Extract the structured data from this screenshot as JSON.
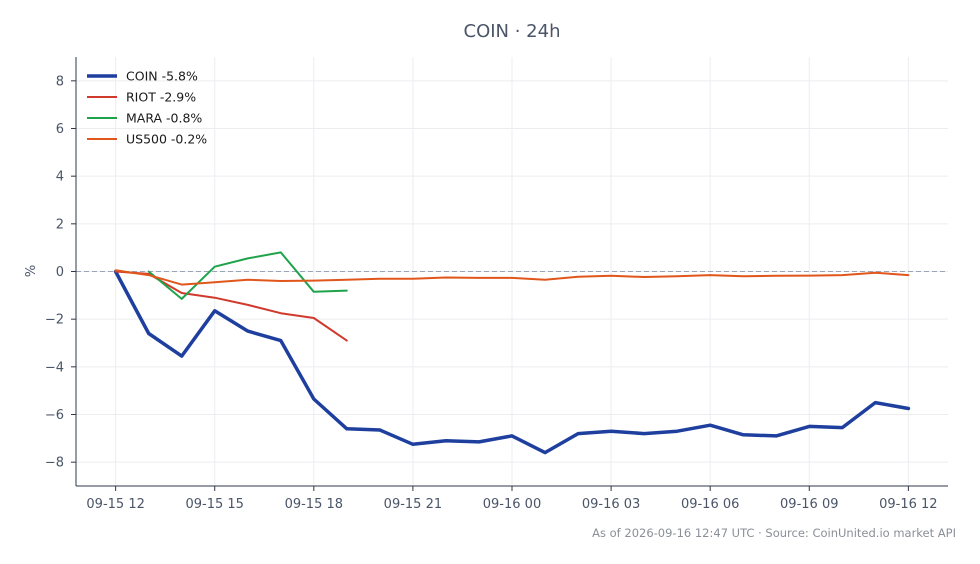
{
  "chart_data": {
    "type": "line",
    "title": "COIN · 24h",
    "xlabel": "",
    "ylabel": "%",
    "ylim": [
      -9,
      9
    ],
    "xlim": [
      -1.2,
      25.2
    ],
    "yticks": [
      -8,
      -6,
      -4,
      -2,
      0,
      2,
      4,
      6,
      8
    ],
    "ytick_labels": [
      "−8",
      "−6",
      "−4",
      "−2",
      "0",
      "2",
      "4",
      "6",
      "8"
    ],
    "xticks": [
      0,
      3,
      6,
      9,
      12,
      15,
      18,
      21,
      24
    ],
    "xtick_labels": [
      "09-15 12",
      "09-15 15",
      "09-15 18",
      "09-15 21",
      "09-16 00",
      "09-16 03",
      "09-16 06",
      "09-16 09",
      "09-16 12"
    ],
    "grid": true,
    "legend_position": "top-left",
    "reference_line": {
      "y": 0,
      "style": "dashed"
    },
    "series": [
      {
        "name": "COIN -5.8%",
        "color": "#1f3f9f",
        "line_width": 3.5,
        "x": [
          0,
          1,
          2,
          3,
          4,
          5,
          6,
          7,
          8,
          9,
          10,
          11,
          12,
          13,
          14,
          15,
          16,
          17,
          18,
          19,
          20,
          21,
          22,
          23,
          24
        ],
        "y": [
          0.0,
          -2.6,
          -3.55,
          -1.65,
          -2.5,
          -2.9,
          -5.35,
          -6.6,
          -6.65,
          -7.25,
          -7.1,
          -7.15,
          -6.9,
          -7.6,
          -6.8,
          -6.7,
          -6.8,
          -6.7,
          -6.45,
          -6.85,
          -6.9,
          -6.5,
          -6.55,
          -5.5,
          -5.75
        ]
      },
      {
        "name": "RIOT -2.9%",
        "color": "#d03a2c",
        "line_width": 2,
        "x": [
          0,
          1,
          2,
          3,
          4,
          5,
          6,
          7
        ],
        "y": [
          0.0,
          -0.1,
          -0.9,
          -1.1,
          -1.4,
          -1.75,
          -1.95,
          -2.9
        ]
      },
      {
        "name": "MARA -0.8%",
        "color": "#1fa34a",
        "line_width": 2,
        "x": [
          1,
          2,
          3,
          4,
          5,
          6,
          7
        ],
        "y": [
          0.0,
          -1.15,
          0.2,
          0.55,
          0.8,
          -0.85,
          -0.8
        ]
      },
      {
        "name": "US500 -0.2%",
        "color": "#e0561b",
        "line_width": 2,
        "x": [
          0,
          1,
          2,
          3,
          4,
          5,
          6,
          7,
          8,
          9,
          10,
          11,
          12,
          13,
          14,
          15,
          16,
          17,
          18,
          19,
          20,
          21,
          22,
          23,
          24
        ],
        "y": [
          0.05,
          -0.15,
          -0.55,
          -0.45,
          -0.35,
          -0.4,
          -0.38,
          -0.35,
          -0.3,
          -0.3,
          -0.25,
          -0.27,
          -0.27,
          -0.35,
          -0.22,
          -0.18,
          -0.23,
          -0.2,
          -0.15,
          -0.2,
          -0.18,
          -0.17,
          -0.15,
          -0.05,
          -0.15
        ]
      }
    ],
    "footer": "As of 2026-09-16 12:47 UTC · Source: CoinUnited.io market API"
  }
}
